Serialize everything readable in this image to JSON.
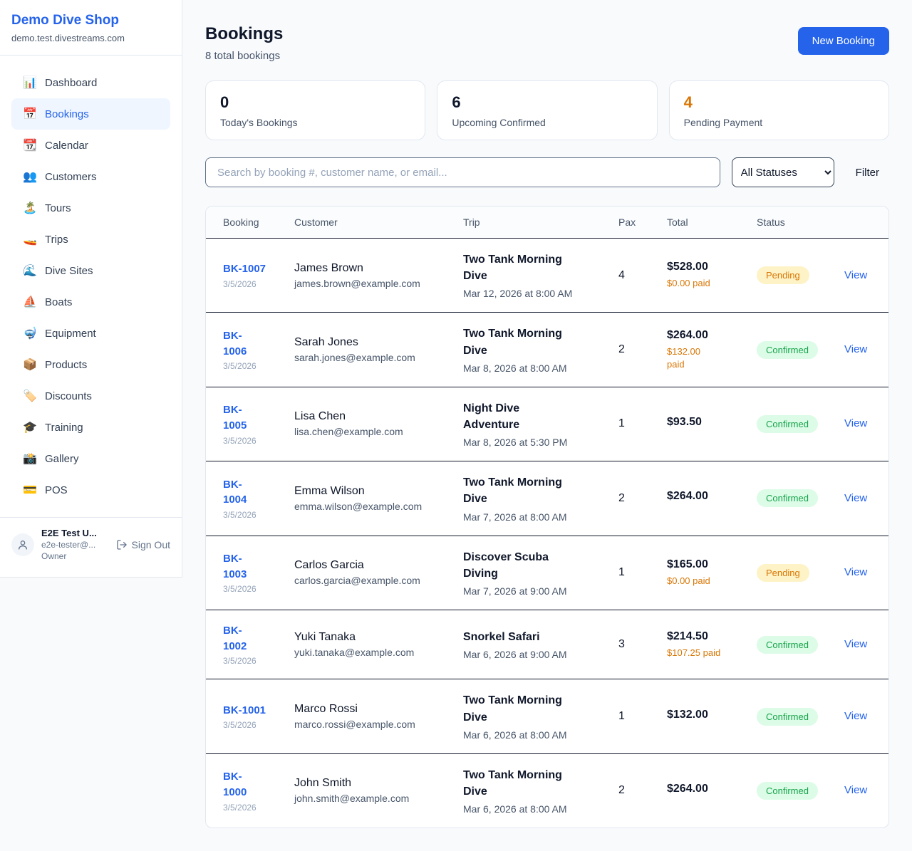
{
  "app": {
    "name": "Demo Dive Shop",
    "domain": "demo.test.divestreams.com"
  },
  "colors": {
    "accent": "#2563eb",
    "page_bg": "#f8fafc",
    "pending_text": "#d97706",
    "pending_bg": "#fef3c7",
    "confirmed_text": "#16a34a",
    "confirmed_bg": "#dcfce7",
    "stat_highlight": "#d97706"
  },
  "sidebar": {
    "items": [
      {
        "icon": "📊",
        "icon_name": "bar-chart-icon",
        "label": "Dashboard",
        "active": false
      },
      {
        "icon": "📅",
        "icon_name": "calendar-date-icon",
        "label": "Bookings",
        "active": true
      },
      {
        "icon": "📆",
        "icon_name": "tear-off-calendar-icon",
        "label": "Calendar",
        "active": false
      },
      {
        "icon": "👥",
        "icon_name": "people-icon",
        "label": "Customers",
        "active": false
      },
      {
        "icon": "🏝️",
        "icon_name": "island-icon",
        "label": "Tours",
        "active": false
      },
      {
        "icon": "🚤",
        "icon_name": "speedboat-icon",
        "label": "Trips",
        "active": false
      },
      {
        "icon": "🌊",
        "icon_name": "wave-icon",
        "label": "Dive Sites",
        "active": false
      },
      {
        "icon": "⛵",
        "icon_name": "sailboat-icon",
        "label": "Boats",
        "active": false
      },
      {
        "icon": "🤿",
        "icon_name": "diving-mask-icon",
        "label": "Equipment",
        "active": false
      },
      {
        "icon": "📦",
        "icon_name": "package-icon",
        "label": "Products",
        "active": false
      },
      {
        "icon": "🏷️",
        "icon_name": "tag-icon",
        "label": "Discounts",
        "active": false
      },
      {
        "icon": "🎓",
        "icon_name": "graduation-cap-icon",
        "label": "Training",
        "active": false
      },
      {
        "icon": "📸",
        "icon_name": "camera-icon",
        "label": "Gallery",
        "active": false
      },
      {
        "icon": "💳",
        "icon_name": "credit-card-icon",
        "label": "POS",
        "active": false
      }
    ],
    "user": {
      "name": "E2E Test U...",
      "email": "e2e-tester@...",
      "role": "Owner",
      "sign_out_label": "Sign Out"
    }
  },
  "header": {
    "title": "Bookings",
    "subtitle": "8 total bookings",
    "new_booking_label": "New Booking"
  },
  "stats": [
    {
      "value": "0",
      "label": "Today's Bookings",
      "highlight": false
    },
    {
      "value": "6",
      "label": "Upcoming Confirmed",
      "highlight": false
    },
    {
      "value": "4",
      "label": "Pending Payment",
      "highlight": true
    }
  ],
  "filters": {
    "search_placeholder": "Search by booking #, customer name, or email...",
    "status_selected": "All Statuses",
    "filter_label": "Filter"
  },
  "table": {
    "columns": [
      "Booking",
      "Customer",
      "Trip",
      "Pax",
      "Total",
      "Status"
    ],
    "view_label": "View",
    "rows": [
      {
        "id": "BK-1007",
        "date": "3/5/2026",
        "customer": "James Brown",
        "email": "james.brown@example.com",
        "trip": "Two Tank Morning Dive",
        "trip_time": "Mar 12, 2026 at 8:00 AM",
        "pax": "4",
        "total": "$528.00",
        "paid": "$0.00 paid",
        "status": "Pending"
      },
      {
        "id": "BK-\n1006",
        "date": "3/5/2026",
        "customer": "Sarah Jones",
        "email": "sarah.jones@example.com",
        "trip": "Two Tank Morning Dive",
        "trip_time": "Mar 8, 2026 at 8:00 AM",
        "pax": "2",
        "total": "$264.00",
        "paid": "$132.00\npaid",
        "status": "Confirmed"
      },
      {
        "id": "BK-\n1005",
        "date": "3/5/2026",
        "customer": "Lisa Chen",
        "email": "lisa.chen@example.com",
        "trip": "Night Dive Adventure",
        "trip_time": "Mar 8, 2026 at 5:30 PM",
        "pax": "1",
        "total": "$93.50",
        "paid": "",
        "status": "Confirmed"
      },
      {
        "id": "BK-\n1004",
        "date": "3/5/2026",
        "customer": "Emma Wilson",
        "email": "emma.wilson@example.com",
        "trip": "Two Tank Morning Dive",
        "trip_time": "Mar 7, 2026 at 8:00 AM",
        "pax": "2",
        "total": "$264.00",
        "paid": "",
        "status": "Confirmed"
      },
      {
        "id": "BK-\n1003",
        "date": "3/5/2026",
        "customer": "Carlos Garcia",
        "email": "carlos.garcia@example.com",
        "trip": "Discover Scuba Diving",
        "trip_time": "Mar 7, 2026 at 9:00 AM",
        "pax": "1",
        "total": "$165.00",
        "paid": "$0.00 paid",
        "status": "Pending"
      },
      {
        "id": "BK-\n1002",
        "date": "3/5/2026",
        "customer": "Yuki Tanaka",
        "email": "yuki.tanaka@example.com",
        "trip": "Snorkel Safari",
        "trip_time": "Mar 6, 2026 at 9:00 AM",
        "pax": "3",
        "total": "$214.50",
        "paid": "$107.25 paid",
        "status": "Confirmed"
      },
      {
        "id": "BK-1001",
        "date": "3/5/2026",
        "customer": "Marco Rossi",
        "email": "marco.rossi@example.com",
        "trip": "Two Tank Morning Dive",
        "trip_time": "Mar 6, 2026 at 8:00 AM",
        "pax": "1",
        "total": "$132.00",
        "paid": "",
        "status": "Confirmed"
      },
      {
        "id": "BK-\n1000",
        "date": "3/5/2026",
        "customer": "John Smith",
        "email": "john.smith@example.com",
        "trip": "Two Tank Morning Dive",
        "trip_time": "Mar 6, 2026 at 8:00 AM",
        "pax": "2",
        "total": "$264.00",
        "paid": "",
        "status": "Confirmed"
      }
    ]
  }
}
